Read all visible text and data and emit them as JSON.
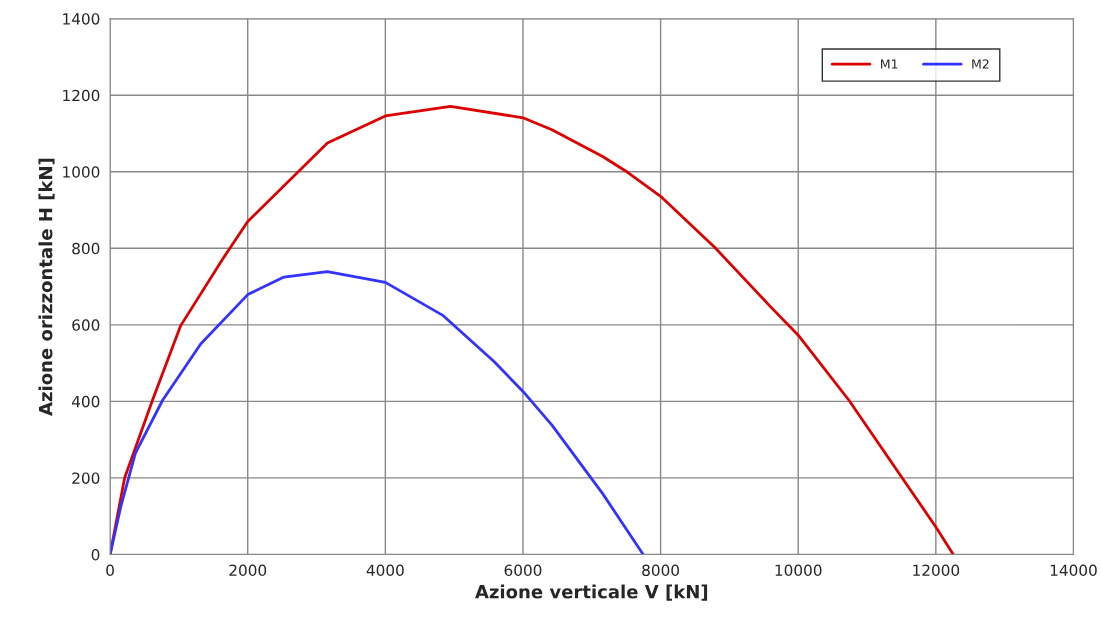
{
  "chart_data": {
    "type": "line",
    "xlabel": "Azione verticale V [kN]",
    "ylabel": "Azione orizzontale H [kN]",
    "xlim": [
      0,
      14000
    ],
    "ylim": [
      0,
      1400
    ],
    "xticks": [
      0,
      2000,
      4000,
      6000,
      8000,
      10000,
      12000,
      14000
    ],
    "yticks": [
      0,
      200,
      400,
      600,
      800,
      1000,
      1200,
      1400
    ],
    "grid": true,
    "legend": "top right",
    "line_style": "solid",
    "series": [
      {
        "name": "M1",
        "color": "#dd0000",
        "x": [
          0,
          211,
          616,
          1026,
          1632,
          2000,
          3158,
          4000,
          4947,
          6000,
          6421,
          7158,
          7526,
          8000,
          8789,
          9579,
          10000,
          10737,
          11579,
          12000,
          12253
        ],
        "values": [
          0,
          200,
          403,
          598,
          771,
          870,
          1075,
          1146,
          1171,
          1141,
          1110,
          1040,
          998,
          936,
          802,
          651,
          573,
          403,
          182,
          72,
          0
        ]
      },
      {
        "name": "M2",
        "color": "#3333ff",
        "x": [
          0,
          158,
          368,
          763,
          1316,
          2000,
          2526,
          3158,
          4000,
          4842,
          5579,
          6000,
          6421,
          7158,
          7747
        ],
        "values": [
          0,
          127,
          265,
          403,
          550,
          679,
          725,
          739,
          711,
          624,
          504,
          426,
          338,
          159,
          0
        ]
      }
    ]
  }
}
